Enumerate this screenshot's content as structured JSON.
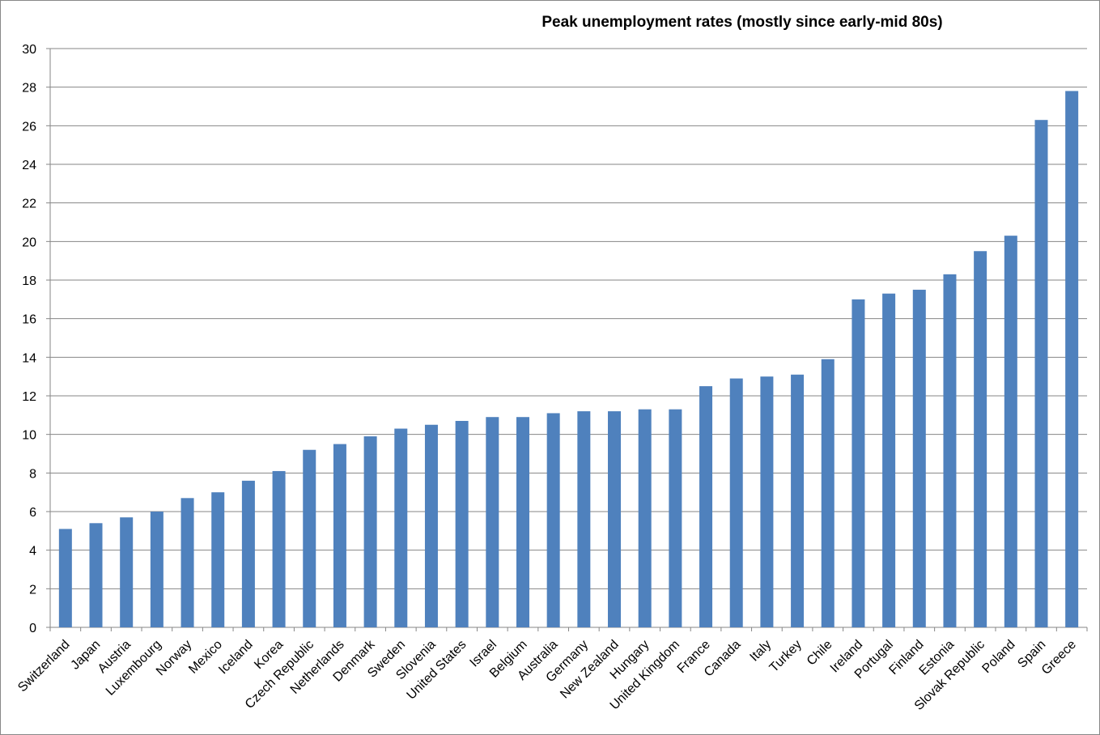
{
  "chart_data": {
    "type": "bar",
    "title": "Peak unemployment rates (mostly since early-mid 80s)",
    "xlabel": "",
    "ylabel": "",
    "ylim": [
      0,
      30
    ],
    "yticks": [
      0,
      2,
      4,
      6,
      8,
      10,
      12,
      14,
      16,
      18,
      20,
      22,
      24,
      26,
      28,
      30
    ],
    "grid": true,
    "bar_color": "#4F81BD",
    "categories": [
      "Switzerland",
      "Japan",
      "Austria",
      "Luxembourg",
      "Norway",
      "Mexico",
      "Iceland",
      "Korea",
      "Czech Republic",
      "Netherlands",
      "Denmark",
      "Sweden",
      "Slovenia",
      "United States",
      "Israel",
      "Belgium",
      "Australia",
      "Germany",
      "New Zealand",
      "Hungary",
      "United Kingdom",
      "France",
      "Canada",
      "Italy",
      "Turkey",
      "Chile",
      "Ireland",
      "Portugal",
      "Finland",
      "Estonia",
      "Slovak Republic",
      "Poland",
      "Spain",
      "Greece"
    ],
    "values": [
      5.1,
      5.4,
      5.7,
      6.0,
      6.7,
      7.0,
      7.6,
      8.1,
      9.2,
      9.5,
      9.9,
      10.3,
      10.5,
      10.7,
      10.9,
      10.9,
      11.1,
      11.2,
      11.2,
      11.3,
      11.3,
      12.5,
      12.9,
      13.0,
      13.1,
      13.9,
      17.0,
      17.3,
      17.5,
      18.3,
      19.5,
      20.3,
      26.3,
      27.8
    ]
  }
}
